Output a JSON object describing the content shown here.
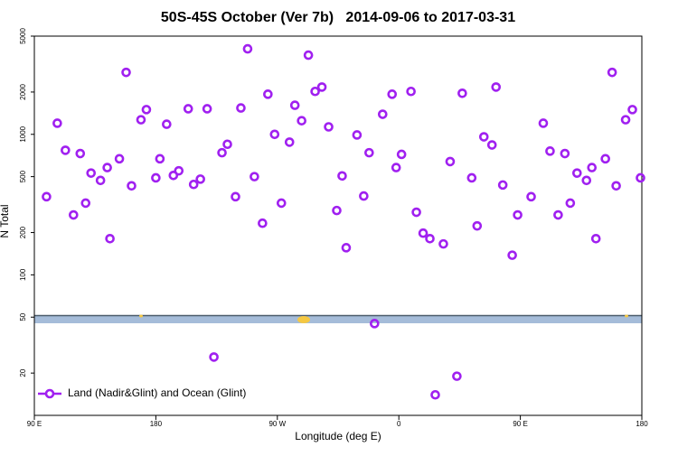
{
  "chart_data": {
    "type": "scatter",
    "title": "50S-45S October (Ver 7b)   2014-09-06 to 2017-03-31",
    "x_label": "Longitude (deg E)",
    "y_label": "N Total",
    "y_scale": "log",
    "grid": false,
    "legend_position": "lower left",
    "xlim": [
      90,
      540
    ],
    "xticks": [
      {
        "value": 90,
        "label": "90 E"
      },
      180,
      {
        "value": 270,
        "label": "90 W"
      },
      {
        "value": 360,
        "label": "0"
      },
      {
        "value": 450,
        "label": "90 E"
      },
      {
        "value": 540,
        "label": "180"
      }
    ],
    "ylim": [
      10,
      5000
    ],
    "yticks": [
      20,
      50,
      100,
      200,
      500,
      1000,
      2000,
      5000
    ],
    "x": [
      99,
      107,
      113,
      119,
      124,
      128,
      132,
      139,
      144,
      146,
      153,
      158,
      162,
      169,
      173,
      180,
      183,
      188,
      193,
      197,
      204,
      208,
      213,
      218,
      223,
      229,
      233,
      239,
      243,
      248,
      253,
      259,
      263,
      268,
      273,
      279,
      283,
      288,
      293,
      298,
      303,
      308,
      314,
      318,
      321,
      329,
      334,
      338,
      342,
      348,
      355,
      358,
      362,
      369,
      373,
      378,
      383,
      387,
      393,
      398,
      403,
      407,
      414,
      418,
      423,
      429,
      432,
      437,
      444,
      448,
      458,
      467,
      472,
      478,
      483,
      487,
      492,
      499,
      503,
      506,
      513,
      518,
      521,
      528,
      533,
      539
    ],
    "series": [
      {
        "name": "Land (Nadir&Glint) and Ocean (Glint)",
        "color": "#a020f0",
        "values": [
          360,
          1200,
          770,
          267,
          730,
          324,
          530,
          470,
          580,
          181,
          670,
          2760,
          430,
          1270,
          1500,
          490,
          670,
          1180,
          510,
          550,
          1520,
          440,
          480,
          1520,
          26,
          740,
          850,
          360,
          1540,
          4060,
          500,
          233,
          1930,
          1000,
          324,
          880,
          1610,
          1250,
          3660,
          2020,
          2170,
          1130,
          287,
          506,
          156,
          990,
          364,
          740,
          45,
          1390,
          1930,
          580,
          720,
          2020,
          279,
          198,
          181,
          14,
          166,
          640,
          19,
          1960,
          490,
          223,
          960,
          840,
          2170,
          436,
          138,
          267,
          360,
          1200,
          760,
          267,
          730,
          324,
          530,
          470,
          580,
          181,
          670,
          2760,
          430,
          1270,
          1500,
          490
        ]
      }
    ]
  }
}
